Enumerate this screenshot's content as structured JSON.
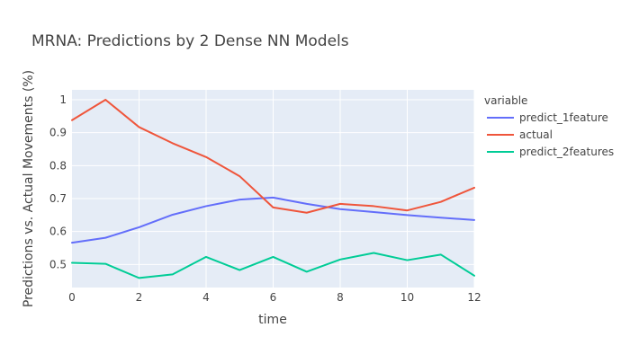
{
  "chart_data": {
    "type": "line",
    "title": "MRNA: Predictions by 2 Dense NN Models",
    "xlabel": "time",
    "ylabel": "Predictions vs. Actual Movements (%)",
    "legend_title": "variable",
    "legend_position": "right",
    "grid": true,
    "xlim": [
      0,
      12
    ],
    "ylim": [
      0.43,
      1.03
    ],
    "xticks": [
      0,
      2,
      4,
      6,
      8,
      10,
      12
    ],
    "yticks": [
      0.5,
      0.6,
      0.7,
      0.8,
      0.9,
      1
    ],
    "x": [
      0,
      1,
      2,
      3,
      4,
      5,
      6,
      7,
      8,
      9,
      10,
      11,
      12
    ],
    "series": [
      {
        "name": "predict_1feature",
        "color": "#636efa",
        "values": [
          0.566,
          0.581,
          0.613,
          0.651,
          0.677,
          0.697,
          0.703,
          0.684,
          0.668,
          0.659,
          0.65,
          0.642,
          0.635
        ]
      },
      {
        "name": "actual",
        "color": "#ef553b",
        "values": [
          0.938,
          1.0,
          0.917,
          0.868,
          0.826,
          0.768,
          0.673,
          0.657,
          0.684,
          0.677,
          0.664,
          0.69,
          0.733
        ]
      },
      {
        "name": "predict_2features",
        "color": "#00cc96",
        "values": [
          0.505,
          0.502,
          0.459,
          0.47,
          0.523,
          0.483,
          0.523,
          0.478,
          0.515,
          0.535,
          0.513,
          0.53,
          0.466
        ]
      }
    ]
  }
}
